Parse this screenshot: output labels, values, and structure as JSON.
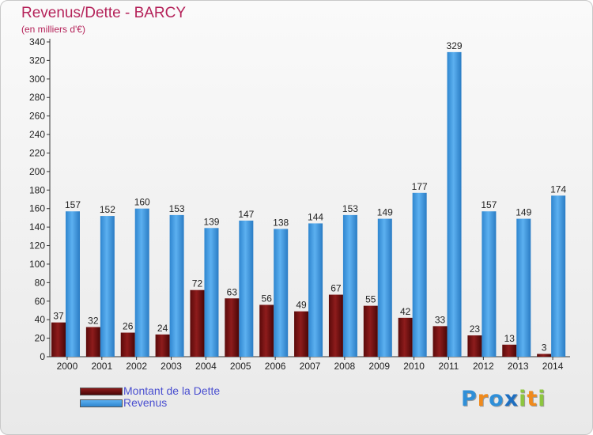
{
  "header": {
    "title": "Revenus/Dette - BARCY",
    "subtitle": "(en milliers d'€)"
  },
  "chart_data": {
    "type": "bar",
    "title": "Revenus/Dette - BARCY",
    "ylabel": "(en milliers d'€)",
    "xlabel": "",
    "ylim": [
      0,
      340
    ],
    "yticks": [
      0,
      20,
      40,
      60,
      80,
      100,
      120,
      140,
      160,
      180,
      200,
      220,
      240,
      260,
      280,
      300,
      320,
      340
    ],
    "grid": false,
    "legend_position": "bottom-left",
    "categories": [
      "2000",
      "2001",
      "2002",
      "2003",
      "2004",
      "2005",
      "2006",
      "2007",
      "2008",
      "2009",
      "2010",
      "2011",
      "2012",
      "2013",
      "2014"
    ],
    "series": [
      {
        "name": "Montant de la Dette",
        "color": "#7a1010",
        "values": [
          37,
          32,
          26,
          24,
          72,
          63,
          56,
          49,
          67,
          55,
          42,
          33,
          23,
          13,
          3
        ]
      },
      {
        "name": "Revenus",
        "color": "#4aa0e6",
        "values": [
          157,
          152,
          160,
          153,
          139,
          147,
          138,
          144,
          153,
          149,
          177,
          329,
          157,
          149,
          174
        ]
      }
    ]
  },
  "logo": {
    "letters": [
      "P",
      "r",
      "o",
      "x",
      "i",
      "t",
      "i"
    ],
    "colors": [
      "#2f8fd8",
      "#f08a1c",
      "#2f8fd8",
      "#1f6fc0",
      "#8dc63f",
      "#f08a1c",
      "#8dc63f"
    ]
  }
}
